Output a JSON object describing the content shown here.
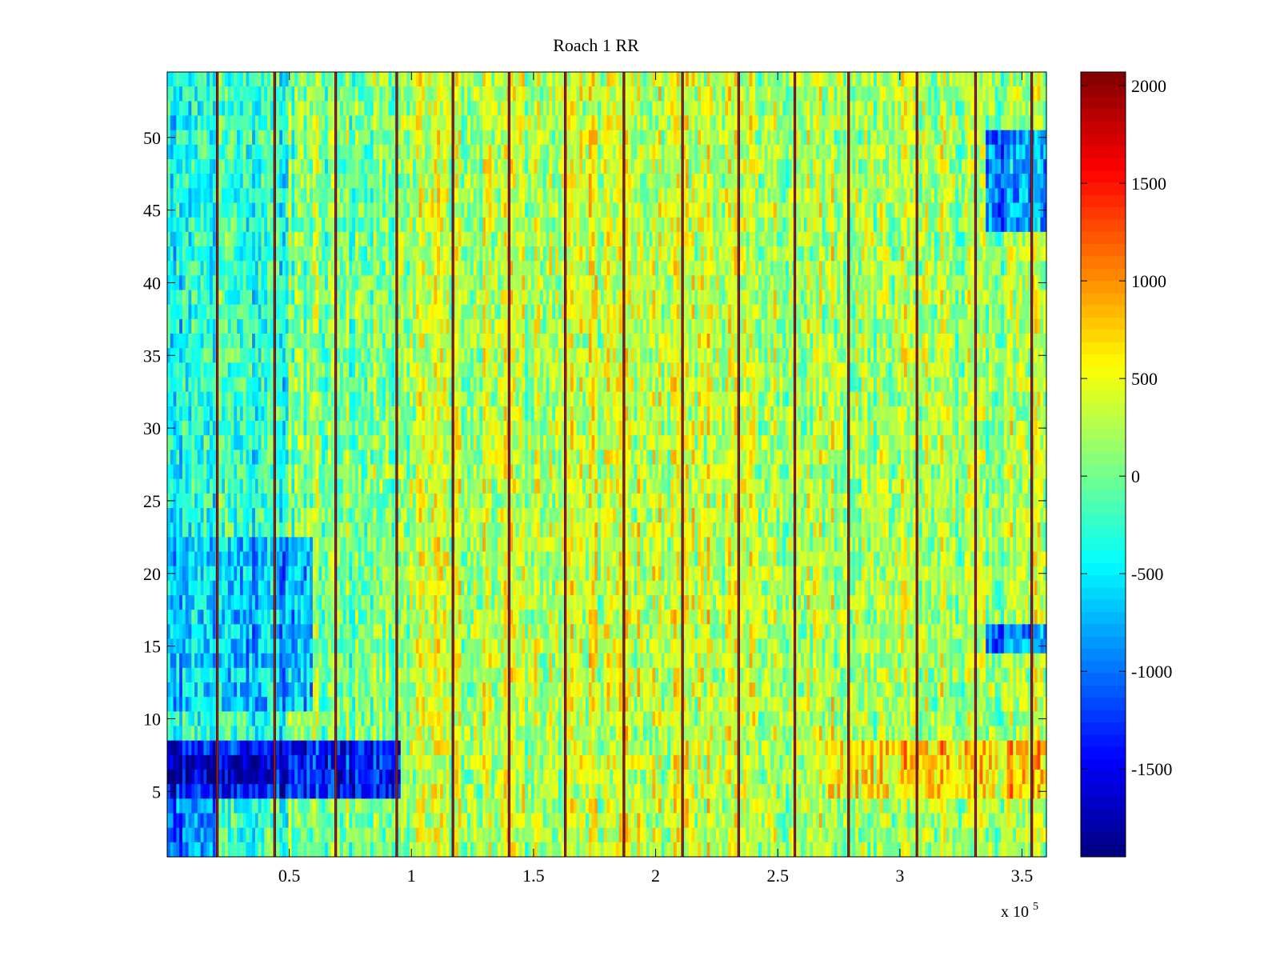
{
  "chart_data": {
    "type": "heatmap",
    "title": "Roach 1 RR",
    "xlabel": "",
    "ylabel": "",
    "x_exponent_label": "x 10",
    "x_exponent_power": "5",
    "xlim": [
      0,
      3.6
    ],
    "ylim": [
      0.5,
      54.5
    ],
    "x_ticks": [
      0.5,
      1,
      1.5,
      2,
      2.5,
      3,
      3.5
    ],
    "x_tick_labels": [
      "0.5",
      "1",
      "1.5",
      "2",
      "2.5",
      "3",
      "3.5"
    ],
    "y_ticks": [
      5,
      10,
      15,
      20,
      25,
      30,
      35,
      40,
      45,
      50
    ],
    "y_tick_labels": [
      "5",
      "10",
      "15",
      "20",
      "25",
      "30",
      "35",
      "40",
      "45",
      "50"
    ],
    "rows": 54,
    "colormap": "jet",
    "colorbar": {
      "clim": [
        -1950,
        2070
      ],
      "ticks": [
        -1500,
        -1000,
        -500,
        0,
        500,
        1000,
        1500,
        2000
      ],
      "tick_labels": [
        "-1500",
        "-1000",
        "-500",
        "0",
        "500",
        "1000",
        "1500",
        "2000"
      ]
    },
    "columns": [
      {
        "x": [
          0.0,
          0.2
        ],
        "level": 0.38
      },
      {
        "x": [
          0.2,
          0.5
        ],
        "level": 0.42
      },
      {
        "x": [
          0.5,
          0.95
        ],
        "level": 0.5
      },
      {
        "x": [
          0.95,
          1.6
        ],
        "level": 0.55
      },
      {
        "x": [
          1.6,
          2.4
        ],
        "level": 0.57
      },
      {
        "x": [
          2.4,
          3.0
        ],
        "level": 0.55
      },
      {
        "x": [
          3.0,
          3.6
        ],
        "level": 0.54
      }
    ],
    "regions": [
      {
        "x": [
          0.0,
          0.95
        ],
        "y": [
          4.5,
          8.5
        ],
        "value": -1400
      },
      {
        "x": [
          0.0,
          0.45
        ],
        "y": [
          5.5,
          7.5
        ],
        "value": -1750
      },
      {
        "x": [
          0.0,
          0.2
        ],
        "y": [
          0.5,
          4.5
        ],
        "value": -1000
      },
      {
        "x": [
          0.0,
          0.6
        ],
        "y": [
          10.5,
          22.5
        ],
        "value": -700
      },
      {
        "x": [
          2.7,
          3.6
        ],
        "y": [
          4.5,
          8.5
        ],
        "value": 700
      },
      {
        "x": [
          3.35,
          3.6
        ],
        "y": [
          43.5,
          50.5
        ],
        "value": -850
      },
      {
        "x": [
          3.35,
          3.6
        ],
        "y": [
          14.5,
          16.5
        ],
        "value": -900
      }
    ],
    "stripes_x": [
      0.205,
      0.44,
      0.69,
      0.94,
      1.17,
      1.4,
      1.63,
      1.87,
      2.11,
      2.34,
      2.57,
      2.79,
      3.07,
      3.31,
      3.54
    ]
  }
}
